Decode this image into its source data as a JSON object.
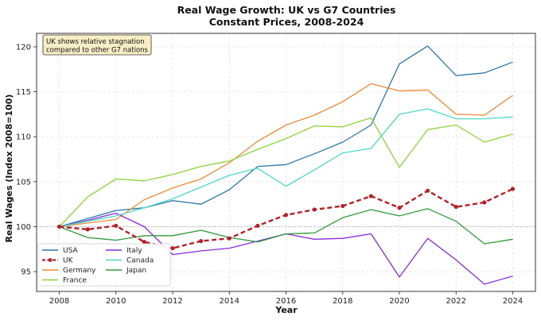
{
  "chart_data": {
    "type": "line",
    "title": "Real Wage Growth: UK vs G7 Countries",
    "subtitle": "Constant Prices, 2008-2024",
    "xlabel": "Year",
    "ylabel": "Real Wages (Index 2008=100)",
    "x": [
      2008,
      2009,
      2010,
      2011,
      2012,
      2013,
      2014,
      2015,
      2016,
      2017,
      2018,
      2019,
      2020,
      2021,
      2022,
      2023,
      2024
    ],
    "xticks": [
      2008,
      2010,
      2012,
      2014,
      2016,
      2018,
      2020,
      2022,
      2024
    ],
    "yticks": [
      95,
      100,
      105,
      110,
      115,
      120
    ],
    "xlim": [
      2007.2,
      2024.8
    ],
    "ylim": [
      92.8,
      121.5
    ],
    "grid": true,
    "reference_line": 100,
    "legend_placement": "lower-left",
    "annotation": "UK shows relative stagnation\ncompared to other G7 nations",
    "series": [
      {
        "name": "USA",
        "color": "#2a7aa8",
        "style": "solid",
        "values": [
          100.0,
          100.9,
          101.8,
          102.1,
          102.9,
          102.5,
          104.1,
          106.7,
          106.9,
          108.1,
          109.4,
          111.3,
          118.1,
          120.1,
          116.8,
          117.1,
          118.3
        ]
      },
      {
        "name": "UK",
        "color": "#b5202a",
        "style": "dashed-marker",
        "values": [
          100.0,
          99.7,
          100.1,
          98.3,
          97.6,
          98.4,
          98.7,
          100.1,
          101.3,
          101.9,
          102.3,
          103.4,
          102.1,
          104.0,
          102.2,
          102.7,
          104.2
        ]
      },
      {
        "name": "Germany",
        "color": "#ef8a35",
        "style": "solid",
        "values": [
          100.0,
          100.4,
          100.8,
          103.0,
          104.3,
          105.3,
          107.1,
          109.5,
          111.3,
          112.4,
          113.9,
          115.9,
          115.1,
          115.2,
          112.5,
          112.4,
          114.6
        ]
      },
      {
        "name": "France",
        "color": "#8ed33a",
        "style": "solid",
        "values": [
          100.0,
          103.3,
          105.3,
          105.1,
          105.8,
          106.7,
          107.3,
          108.6,
          109.8,
          111.2,
          111.1,
          112.1,
          106.6,
          110.8,
          111.3,
          109.4,
          110.3
        ]
      },
      {
        "name": "Italy",
        "color": "#8a2be2",
        "style": "solid",
        "values": [
          100.0,
          100.7,
          101.5,
          100.0,
          96.9,
          97.3,
          97.6,
          98.4,
          99.2,
          98.6,
          98.7,
          99.2,
          94.4,
          98.7,
          96.3,
          93.6,
          94.5
        ]
      },
      {
        "name": "Canada",
        "color": "#4fd8c4",
        "style": "solid",
        "values": [
          100.0,
          100.6,
          101.2,
          102.1,
          103.1,
          104.4,
          105.7,
          106.5,
          104.5,
          106.3,
          108.2,
          108.7,
          112.5,
          113.1,
          112.0,
          112.0,
          112.2
        ]
      },
      {
        "name": "Japan",
        "color": "#2e9a3a",
        "style": "solid",
        "values": [
          100.0,
          98.8,
          98.5,
          99.0,
          99.0,
          99.6,
          98.8,
          98.3,
          99.2,
          99.3,
          101.0,
          101.9,
          101.2,
          102.0,
          100.6,
          98.1,
          98.6
        ]
      }
    ]
  }
}
